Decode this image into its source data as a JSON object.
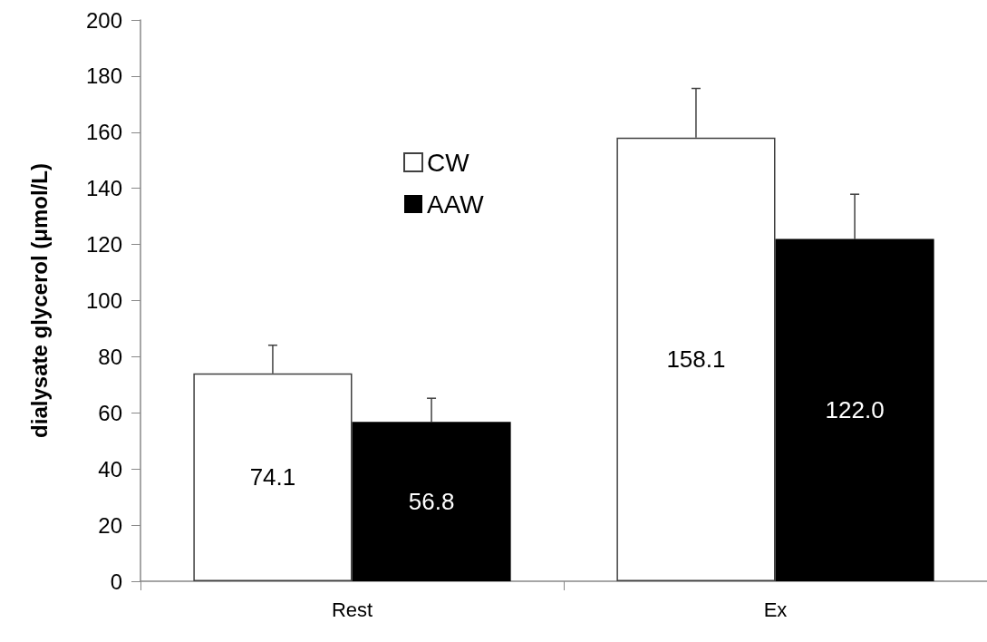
{
  "chart_data": {
    "type": "bar",
    "ylabel": "dialysate glycerol (μmol/L)",
    "categories": [
      "Rest",
      "Ex"
    ],
    "series": [
      {
        "name": "CW",
        "color": "#ffffff",
        "values": [
          74.1,
          158.1
        ],
        "value_labels": [
          "74.1",
          "158.1"
        ],
        "errors": [
          10,
          17.5
        ]
      },
      {
        "name": "AAW",
        "color": "#000000",
        "values": [
          56.8,
          122.0
        ],
        "value_labels": [
          "56.8",
          "122.0"
        ],
        "errors": [
          8.4,
          15.9
        ]
      }
    ],
    "ylim": [
      0,
      200
    ],
    "yticks": [
      0,
      20,
      40,
      60,
      80,
      100,
      120,
      140,
      160,
      180,
      200
    ],
    "grid": false,
    "legend": "top"
  }
}
